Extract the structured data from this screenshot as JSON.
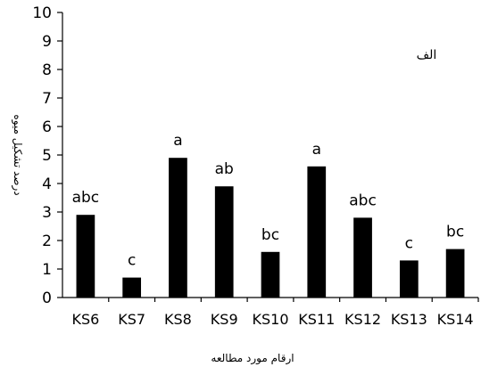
{
  "chart_data": {
    "type": "bar",
    "categories": [
      "KS6",
      "KS7",
      "KS8",
      "KS9",
      "KS10",
      "KS11",
      "KS12",
      "KS13",
      "KS14"
    ],
    "values": [
      2.9,
      0.7,
      4.9,
      3.9,
      1.6,
      4.6,
      2.8,
      1.3,
      1.7
    ],
    "data_labels": [
      "abc",
      "c",
      "a",
      "ab",
      "bc",
      "a",
      "abc",
      "c",
      "bc"
    ],
    "yticks": [
      0,
      1,
      2,
      3,
      4,
      5,
      6,
      7,
      8,
      9,
      10
    ],
    "ylim": [
      0,
      10
    ],
    "ylabel": "درصد تشکیل میوه",
    "xlabel": "ارقام مورد مطالعه",
    "panel_label": "الف",
    "grid": false,
    "bar_color": "#000000"
  }
}
